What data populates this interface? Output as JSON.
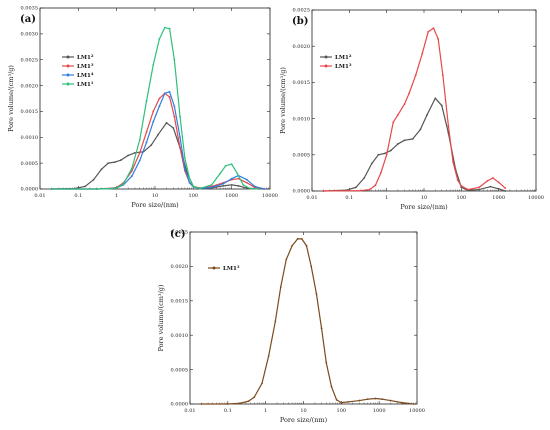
{
  "chart_data": [
    {
      "type": "line",
      "panel": "(a)",
      "xlabel": "Pore size/(nm)",
      "ylabel": "Pore volume/(cm³/g)",
      "xscale": "log",
      "xlim": [
        0.01,
        10000
      ],
      "ylim": [
        0,
        0.0035
      ],
      "x_ticks": [
        "0.01",
        "0.1",
        "1",
        "10",
        "100",
        "1000",
        "10000"
      ],
      "y_ticks": [
        "0.0000",
        "0.0005",
        "0.0010",
        "0.0015",
        "0.0020",
        "0.0025",
        "0.0030",
        "0.0035"
      ],
      "legend_position": "top-left",
      "series": [
        {
          "name": "LM1₂",
          "name_base": "LM1",
          "name_sub": "2",
          "color": "#555555",
          "x": [
            0.02,
            0.08,
            0.15,
            0.25,
            0.4,
            0.6,
            0.9,
            1.3,
            2,
            3,
            5,
            8,
            12,
            20,
            30,
            45,
            70,
            100,
            150,
            300,
            600,
            1000,
            1500,
            2500,
            4000,
            7000
          ],
          "values": [
            0,
            1e-05,
            5e-05,
            0.00018,
            0.00038,
            0.0005,
            0.00052,
            0.00056,
            0.00065,
            0.0007,
            0.00072,
            0.00085,
            0.00105,
            0.00128,
            0.00118,
            0.0008,
            0.0003,
            5e-05,
            1e-05,
            2e-05,
            6e-05,
            8e-05,
            6e-05,
            2e-05,
            5e-06,
            0
          ]
        },
        {
          "name": "LM1₃",
          "name_base": "LM1",
          "name_sub": "3",
          "color": "#e8474a",
          "x": [
            0.02,
            0.3,
            0.6,
            1,
            1.5,
            2.5,
            4,
            6,
            9,
            13,
            18,
            24,
            32,
            45,
            60,
            80,
            100,
            150,
            300,
            600,
            1000,
            1500,
            2500,
            4000,
            7000
          ],
          "values": [
            0,
            0,
            1e-05,
            3e-05,
            0.00012,
            0.00035,
            0.0007,
            0.0011,
            0.0015,
            0.00175,
            0.00185,
            0.00178,
            0.0014,
            0.0008,
            0.00035,
            0.00012,
            5e-05,
            2e-05,
            5e-05,
            0.00012,
            0.00018,
            0.0002,
            0.00012,
            3e-05,
            0
          ]
        },
        {
          "name": "LM1₄",
          "name_base": "LM1",
          "name_sub": "4",
          "color": "#2f7fe0",
          "x": [
            0.02,
            0.3,
            0.6,
            1,
            1.5,
            2.5,
            4,
            6,
            9,
            13,
            18,
            24,
            32,
            45,
            60,
            80,
            100,
            150,
            300,
            600,
            1000,
            1500,
            2500,
            4000,
            7000
          ],
          "values": [
            0,
            0,
            5e-06,
            2e-05,
            8e-05,
            0.00025,
            0.00055,
            0.0009,
            0.0013,
            0.0016,
            0.00185,
            0.00188,
            0.0016,
            0.001,
            0.0004,
            0.00012,
            4e-05,
            1e-05,
            3e-05,
            0.0001,
            0.0002,
            0.00026,
            0.00018,
            5e-05,
            0
          ]
        },
        {
          "name": "LM1₁",
          "name_base": "LM1",
          "name_sub": "1",
          "color": "#2ec07a",
          "x": [
            0.02,
            0.3,
            0.6,
            1,
            1.5,
            2.5,
            4,
            6,
            9,
            13,
            18,
            24,
            32,
            45,
            60,
            80,
            100,
            150,
            300,
            500,
            700,
            1000,
            1400,
            2000,
            3000,
            5000
          ],
          "values": [
            0,
            0,
            5e-06,
            2e-05,
            0.0001,
            0.0004,
            0.00095,
            0.0017,
            0.0024,
            0.0029,
            0.00312,
            0.0031,
            0.0025,
            0.0014,
            0.0006,
            0.0002,
            5e-05,
            1e-05,
            8e-05,
            0.0003,
            0.00045,
            0.00048,
            0.0003,
            8e-05,
            1e-05,
            0
          ]
        }
      ]
    },
    {
      "type": "line",
      "panel": "(b)",
      "xlabel": "Pore size/(nm)",
      "ylabel": "Pore volume/(cm³/g)",
      "xscale": "log",
      "xlim": [
        0.01,
        10000
      ],
      "ylim": [
        0,
        0.0025
      ],
      "x_ticks": [
        "0.01",
        "0.1",
        "1",
        "10",
        "100",
        "1000",
        "10000"
      ],
      "y_ticks": [
        "0.0000",
        "0.0005",
        "0.0010",
        "0.0015",
        "0.0020",
        "0.0025"
      ],
      "legend_position": "top-left",
      "series": [
        {
          "name": "LM1₂",
          "name_base": "LM1",
          "name_sub": "2",
          "color": "#555555",
          "x": [
            0.02,
            0.08,
            0.15,
            0.25,
            0.4,
            0.6,
            0.9,
            1.3,
            2,
            3,
            5,
            8,
            12,
            20,
            30,
            45,
            70,
            100,
            150,
            300,
            600,
            1000,
            1500
          ],
          "values": [
            0,
            1e-05,
            5e-05,
            0.00018,
            0.00038,
            0.0005,
            0.00052,
            0.00056,
            0.00065,
            0.0007,
            0.00072,
            0.00085,
            0.00105,
            0.00128,
            0.00118,
            0.0008,
            0.0003,
            5e-05,
            1e-05,
            2e-05,
            6e-05,
            3e-05,
            0
          ]
        },
        {
          "name": "LM1₃",
          "name_base": "LM1",
          "name_sub": "3",
          "color": "#e8474a",
          "x": [
            0.02,
            0.2,
            0.35,
            0.5,
            0.7,
            1,
            1.5,
            2,
            3,
            4,
            6,
            9,
            13,
            18,
            24,
            32,
            45,
            60,
            80,
            100,
            150,
            300,
            500,
            700,
            1000,
            1500
          ],
          "values": [
            0,
            5e-06,
            2e-05,
            8e-05,
            0.00025,
            0.0005,
            0.00095,
            0.00105,
            0.0012,
            0.00135,
            0.0016,
            0.0019,
            0.0022,
            0.00225,
            0.0021,
            0.0016,
            0.0009,
            0.0004,
            0.00015,
            7e-05,
            2e-05,
            5e-05,
            0.00014,
            0.00018,
            0.00012,
            4e-05
          ]
        }
      ]
    },
    {
      "type": "line",
      "panel": "(c)",
      "xlabel": "Pore size/(nm)",
      "ylabel": "Pore volume/(cm³/g)",
      "xscale": "log",
      "xlim": [
        0.01,
        10000
      ],
      "ylim": [
        0,
        0.0025
      ],
      "x_ticks": [
        "0.01",
        "0.1",
        "1",
        "10",
        "100",
        "1000",
        "10000"
      ],
      "y_ticks": [
        "0.0000",
        "0.0005",
        "0.0010",
        "0.0015",
        "0.0020",
        "0.0025"
      ],
      "legend_position": "top-left",
      "series": [
        {
          "name": "LM1₃",
          "name_base": "LM1",
          "name_sub": "3",
          "color": "#7a4a1e",
          "x": [
            0.02,
            0.1,
            0.2,
            0.35,
            0.5,
            0.8,
            1.2,
            1.8,
            2.5,
            3.5,
            5,
            7,
            9,
            12,
            16,
            22,
            30,
            40,
            55,
            75,
            100,
            150,
            300,
            500,
            800,
            1200,
            2000,
            4000,
            8000
          ],
          "values": [
            0,
            0,
            1e-05,
            4e-05,
            0.0001,
            0.0003,
            0.0007,
            0.0012,
            0.0017,
            0.0021,
            0.0023,
            0.0024,
            0.0024,
            0.0023,
            0.002,
            0.0016,
            0.0011,
            0.0006,
            0.00025,
            6e-05,
            2e-05,
            3e-05,
            5e-05,
            7e-05,
            8e-05,
            7e-05,
            5e-05,
            2e-05,
            0
          ]
        }
      ]
    }
  ]
}
